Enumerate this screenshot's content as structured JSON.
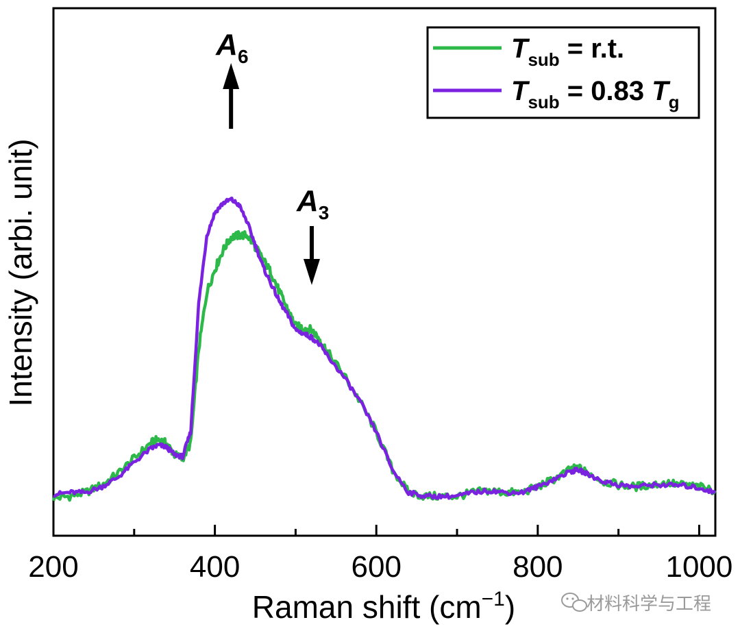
{
  "chart_data": {
    "type": "line",
    "xlabel": "Raman shift (cm",
    "xlabel_sup": "−1",
    "xlabel_close": ")",
    "ylabel": "Intensity (arbi. unit)",
    "xlim": [
      200,
      1020
    ],
    "ylim": [
      0,
      1.0
    ],
    "xticks": [
      "200",
      "400",
      "600",
      "800",
      "1000"
    ],
    "yticks": "none",
    "grid": false,
    "legend_position": "top-right",
    "series": [
      {
        "name": "T_sub = r.t.",
        "color": "#2db84a",
        "x": [
          200,
          220,
          240,
          260,
          280,
          300,
          320,
          330,
          340,
          350,
          360,
          370,
          380,
          390,
          400,
          410,
          420,
          430,
          440,
          450,
          460,
          470,
          480,
          490,
          500,
          510,
          520,
          530,
          540,
          560,
          580,
          600,
          620,
          640,
          660,
          680,
          700,
          720,
          740,
          760,
          780,
          800,
          820,
          840,
          850,
          860,
          880,
          900,
          920,
          940,
          960,
          980,
          1000,
          1020
        ],
        "y": [
          0.045,
          0.05,
          0.06,
          0.08,
          0.11,
          0.15,
          0.19,
          0.2,
          0.19,
          0.16,
          0.15,
          0.19,
          0.44,
          0.59,
          0.65,
          0.7,
          0.735,
          0.74,
          0.74,
          0.71,
          0.675,
          0.64,
          0.59,
          0.545,
          0.5,
          0.495,
          0.49,
          0.465,
          0.43,
          0.37,
          0.3,
          0.22,
          0.12,
          0.06,
          0.05,
          0.05,
          0.05,
          0.06,
          0.065,
          0.06,
          0.06,
          0.075,
          0.095,
          0.12,
          0.125,
          0.115,
          0.09,
          0.08,
          0.075,
          0.08,
          0.085,
          0.08,
          0.075,
          0.065
        ]
      },
      {
        "name": "T_sub = 0.83 T_g",
        "color": "#7a22e0",
        "x": [
          200,
          220,
          240,
          260,
          280,
          300,
          320,
          330,
          340,
          350,
          360,
          370,
          380,
          390,
          400,
          410,
          420,
          430,
          440,
          450,
          460,
          470,
          480,
          490,
          500,
          510,
          520,
          530,
          540,
          560,
          580,
          600,
          620,
          640,
          660,
          680,
          700,
          720,
          740,
          760,
          780,
          800,
          820,
          840,
          850,
          860,
          880,
          900,
          920,
          940,
          960,
          980,
          1000,
          1020
        ],
        "y": [
          0.055,
          0.06,
          0.06,
          0.075,
          0.1,
          0.14,
          0.175,
          0.185,
          0.18,
          0.16,
          0.155,
          0.22,
          0.56,
          0.74,
          0.8,
          0.825,
          0.835,
          0.82,
          0.775,
          0.715,
          0.655,
          0.61,
          0.565,
          0.53,
          0.49,
          0.48,
          0.47,
          0.45,
          0.42,
          0.365,
          0.3,
          0.22,
          0.12,
          0.06,
          0.05,
          0.05,
          0.05,
          0.06,
          0.065,
          0.06,
          0.06,
          0.075,
          0.095,
          0.115,
          0.12,
          0.11,
          0.09,
          0.08,
          0.075,
          0.08,
          0.08,
          0.078,
          0.072,
          0.06
        ]
      }
    ],
    "legend": [
      {
        "label_main": "T",
        "label_sub": "sub",
        "label_rest": " = r.t.",
        "color": "#2db84a"
      },
      {
        "label_main": "T",
        "label_sub": "sub",
        "label_rest": " = 0.83 ",
        "label_main2": "T",
        "label_sub2": "g",
        "color": "#7a22e0"
      }
    ],
    "annotations": [
      {
        "letter": "A",
        "sub": "6",
        "x": 420,
        "direction": "up"
      },
      {
        "letter": "A",
        "sub": "3",
        "x": 520,
        "direction": "down"
      }
    ]
  },
  "watermark": {
    "text": "材料科学与工程",
    "icon": "wechat-icon"
  }
}
